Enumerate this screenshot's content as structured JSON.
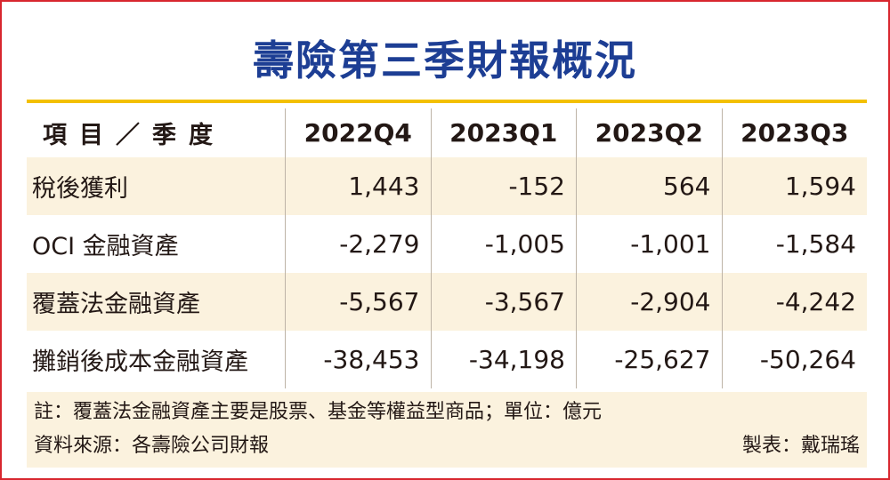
{
  "title": "壽險第三季財報概況",
  "table": {
    "header": [
      "項目／季度",
      "2022Q4",
      "2023Q1",
      "2023Q2",
      "2023Q3"
    ],
    "rows": [
      {
        "label": "稅後獲利",
        "values": [
          "1,443",
          "-152",
          "564",
          "1,594"
        ]
      },
      {
        "label": "OCI 金融資產",
        "values": [
          "-2,279",
          "-1,005",
          "-1,001",
          "-1,584"
        ]
      },
      {
        "label": "覆蓋法金融資產",
        "values": [
          "-5,567",
          "-3,567",
          "-2,904",
          "-4,242"
        ]
      },
      {
        "label": "攤銷後成本金融資產",
        "values": [
          "-38,453",
          "-34,198",
          "-25,627",
          "-50,264"
        ]
      }
    ]
  },
  "notes": {
    "note": "註：覆蓋法金融資產主要是股票、基金等權益型商品；單位：億元",
    "source": "資料來源：各壽險公司財報",
    "credit": "製表：戴瑞瑤"
  },
  "colors": {
    "title": "#1d3e94",
    "border": "#d8262e",
    "accent_line": "#f3c000",
    "row_shade": "#fbf2de"
  }
}
